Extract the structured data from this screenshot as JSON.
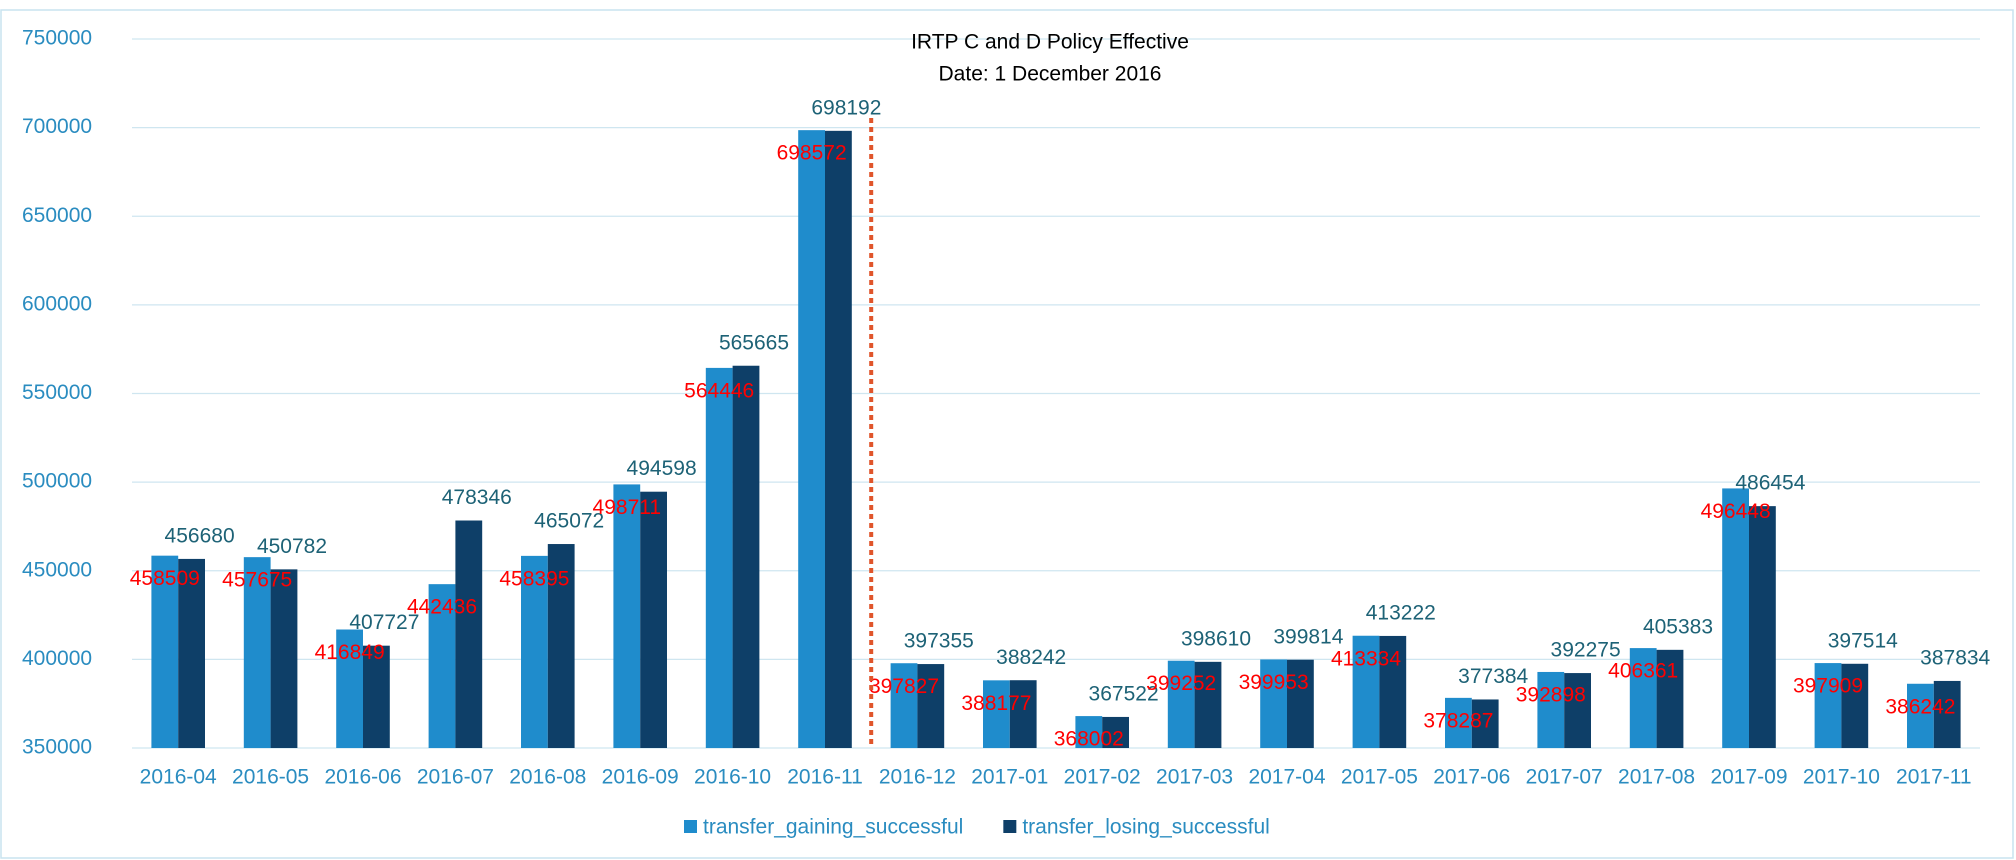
{
  "chart_data": {
    "type": "bar",
    "annotation": [
      "IRTP C and D Policy Effective",
      "Date: 1 December 2016"
    ],
    "categories": [
      "2016-04",
      "2016-05",
      "2016-06",
      "2016-07",
      "2016-08",
      "2016-09",
      "2016-10",
      "2016-11",
      "2016-12",
      "2017-01",
      "2017-02",
      "2017-03",
      "2017-04",
      "2017-05",
      "2017-06",
      "2017-07",
      "2017-08",
      "2017-09",
      "2017-10",
      "2017-11"
    ],
    "series": [
      {
        "name": "transfer_gaining_successful",
        "color": "#1f8ccc",
        "label_color": "#ff0000",
        "values": [
          458509,
          457675,
          416849,
          442436,
          458395,
          498711,
          564446,
          698572,
          397827,
          388177,
          368002,
          399252,
          399953,
          413334,
          378287,
          392898,
          406361,
          496448,
          397909,
          386242
        ]
      },
      {
        "name": "transfer_losing_successful",
        "color": "#0e3f68",
        "label_color": "#1d6276",
        "values": [
          456680,
          450782,
          407727,
          478346,
          465072,
          494598,
          565665,
          698192,
          397355,
          388242,
          367522,
          398610,
          399814,
          413222,
          377384,
          392275,
          405383,
          486454,
          397514,
          387834
        ]
      }
    ],
    "ylim": [
      350000,
      750000
    ],
    "yticks": [
      350000,
      400000,
      450000,
      500000,
      550000,
      600000,
      650000,
      700000,
      750000
    ],
    "grid": true,
    "legend": "bottom"
  }
}
